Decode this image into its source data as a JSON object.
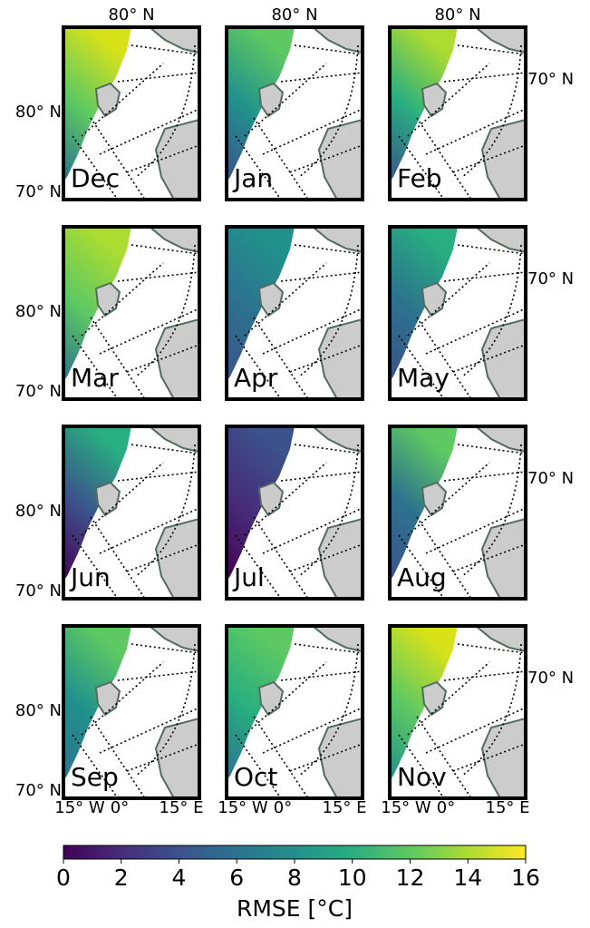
{
  "panels": [
    {
      "month": "Dec"
    },
    {
      "month": "Jan"
    },
    {
      "month": "Feb"
    },
    {
      "month": "Mar"
    },
    {
      "month": "Apr"
    },
    {
      "month": "May"
    },
    {
      "month": "Jun"
    },
    {
      "month": "Jul"
    },
    {
      "month": "Aug"
    },
    {
      "month": "Sep"
    },
    {
      "month": "Oct"
    },
    {
      "month": "Nov"
    }
  ],
  "grid_labels": {
    "top": [
      "80° N",
      "80° N",
      "80° N"
    ],
    "left": [
      [
        "80° N",
        "70° N"
      ],
      [
        "80° N",
        "70° N"
      ],
      [
        "80° N",
        "70° N"
      ],
      [
        "80° N",
        "70° N"
      ]
    ],
    "right": [
      "70° N",
      "70° N",
      "70° N",
      "70° N"
    ],
    "bottom": [
      [
        "15° W",
        "0°",
        "15° E"
      ],
      [
        "15° W",
        "0°",
        "15° E"
      ],
      [
        "15° W",
        "0°",
        "15° E"
      ]
    ]
  },
  "colorbar": {
    "label": "RMSE [°C]",
    "lim": [
      0,
      16
    ],
    "ticks": [
      0,
      2,
      4,
      6,
      8,
      10,
      12,
      14,
      16
    ]
  }
}
